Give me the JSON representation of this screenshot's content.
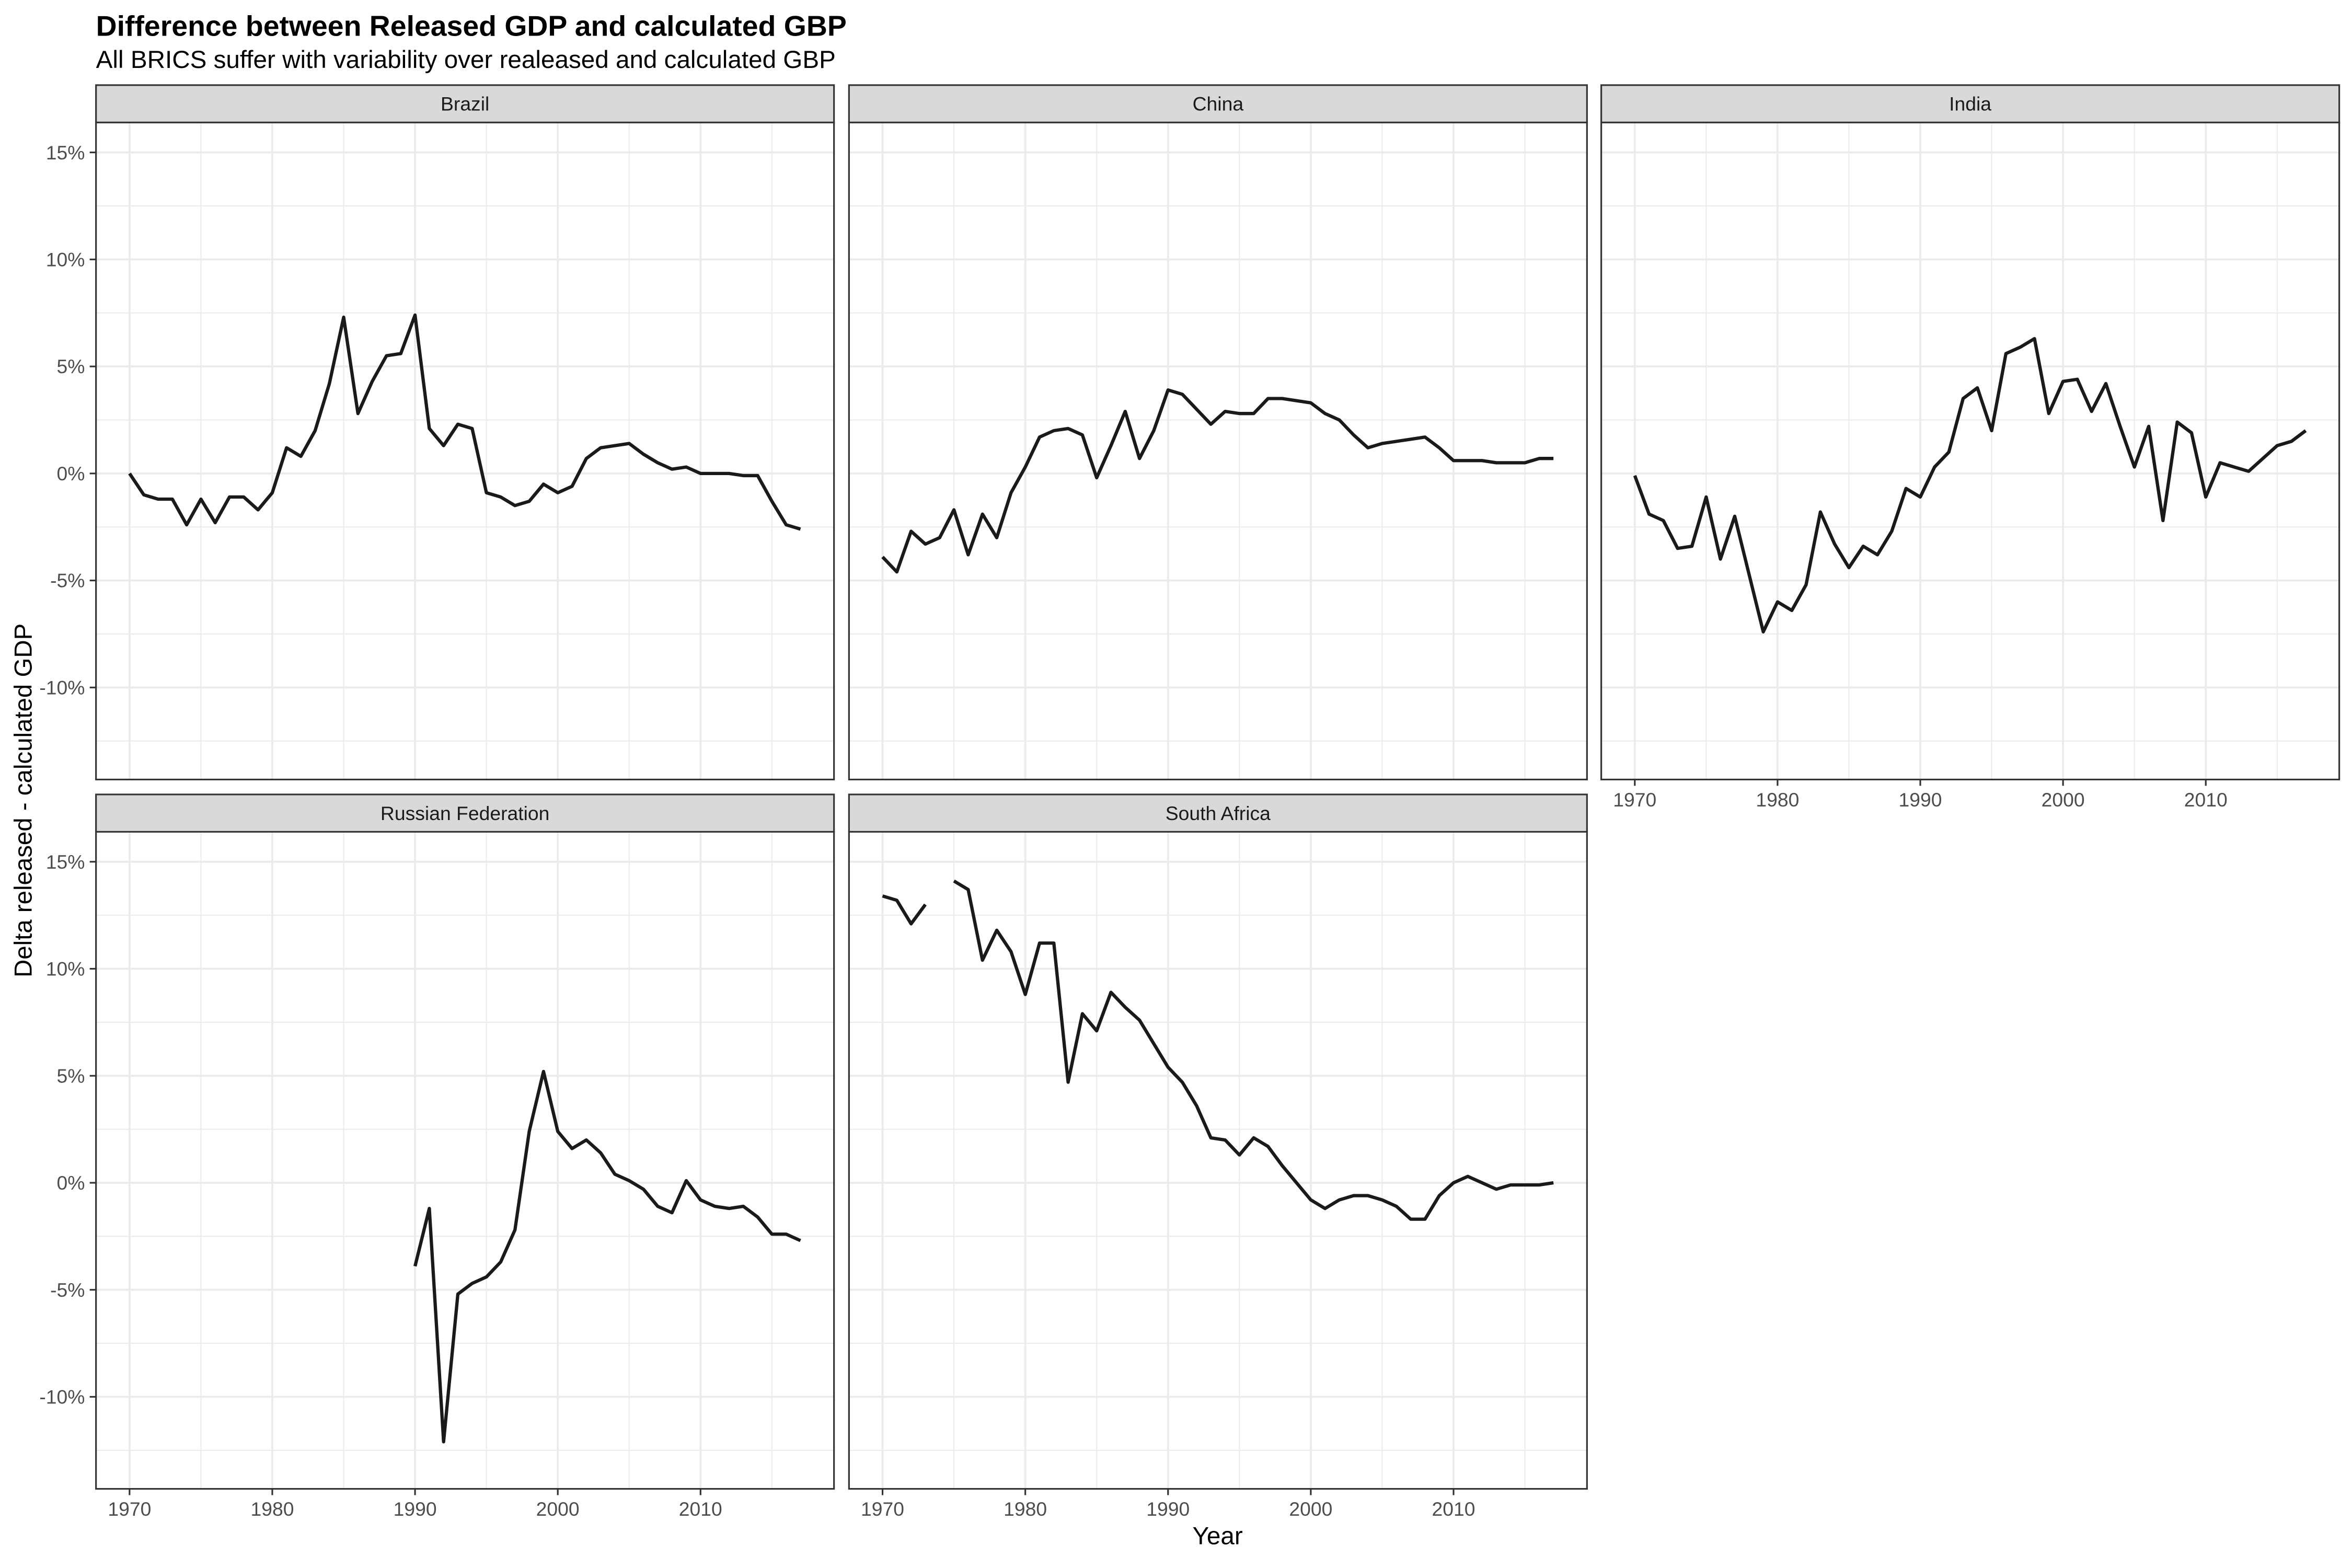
{
  "chart_data": {
    "type": "line",
    "title": "Difference between Released GDP and calculated GBP",
    "subtitle": "All BRICS suffer with variability over realeased and calculated GBP",
    "xlabel": "Year",
    "ylabel": "Delta released - calculated GDP",
    "xlim": [
      1967.65,
      2019.35
    ],
    "ylim": [
      -14.3,
      16.4
    ],
    "xticks": [
      1970,
      1980,
      1990,
      2000,
      2010
    ],
    "xtick_labels": [
      "1970",
      "1980",
      "1990",
      "2000",
      "2010"
    ],
    "yticks": [
      -10,
      -5,
      0,
      5,
      10,
      15
    ],
    "ytick_labels": [
      "-10%",
      "-5%",
      "0%",
      "5%",
      "10%",
      "15%"
    ],
    "grid": true,
    "legend": "none",
    "colors": {
      "line": "#1A1A1A",
      "strip": "#D9D9D9",
      "border": "#333333",
      "grid": "#EBEBEB",
      "axis_text": "#4D4D4D"
    },
    "x": [
      1970,
      1971,
      1972,
      1973,
      1974,
      1975,
      1976,
      1977,
      1978,
      1979,
      1980,
      1981,
      1982,
      1983,
      1984,
      1985,
      1986,
      1987,
      1988,
      1989,
      1990,
      1991,
      1992,
      1993,
      1994,
      1995,
      1996,
      1997,
      1998,
      1999,
      2000,
      2001,
      2002,
      2003,
      2004,
      2005,
      2006,
      2007,
      2008,
      2009,
      2010,
      2011,
      2012,
      2013,
      2014,
      2015,
      2016,
      2017
    ],
    "series": [
      {
        "name": "Brazil",
        "values": [
          0.0,
          -1.0,
          -1.2,
          -1.2,
          -2.4,
          -1.2,
          -2.3,
          -1.1,
          -1.1,
          -1.7,
          -0.9,
          1.2,
          0.8,
          2.0,
          4.2,
          7.3,
          2.8,
          4.3,
          5.5,
          5.6,
          7.4,
          2.1,
          1.3,
          2.3,
          2.1,
          -0.9,
          -1.1,
          -1.5,
          -1.3,
          -0.5,
          -0.9,
          -0.6,
          0.7,
          1.2,
          1.3,
          1.4,
          0.9,
          0.5,
          0.2,
          0.3,
          0.0,
          0.0,
          0.0,
          -0.1,
          -0.1,
          -1.3,
          -2.4,
          -2.6
        ]
      },
      {
        "name": "China",
        "values": [
          -3.9,
          -4.6,
          -2.7,
          -3.3,
          -3.0,
          -1.7,
          -3.8,
          -1.9,
          -3.0,
          -0.9,
          0.3,
          1.7,
          2.0,
          2.1,
          1.8,
          -0.2,
          1.3,
          2.9,
          0.7,
          2.0,
          3.9,
          3.7,
          3.0,
          2.3,
          2.9,
          2.8,
          2.8,
          3.5,
          3.5,
          3.4,
          3.3,
          2.8,
          2.5,
          1.8,
          1.2,
          1.4,
          1.5,
          1.6,
          1.7,
          1.2,
          0.6,
          0.6,
          0.6,
          0.5,
          0.5,
          0.5,
          0.7,
          0.7
        ]
      },
      {
        "name": "India",
        "values": [
          -0.1,
          -1.9,
          -2.2,
          -3.5,
          -3.4,
          -1.1,
          -4.0,
          -2.0,
          -4.7,
          -7.4,
          -6.0,
          -6.4,
          -5.2,
          -1.8,
          -3.3,
          -4.4,
          -3.4,
          -3.8,
          -2.7,
          -0.7,
          -1.1,
          0.3,
          1.0,
          3.5,
          4.0,
          2.0,
          5.6,
          5.9,
          6.3,
          2.8,
          4.3,
          4.4,
          2.9,
          4.2,
          2.2,
          0.3,
          2.2,
          -2.2,
          2.4,
          1.9,
          -1.1,
          0.5,
          0.3,
          0.1,
          0.7,
          1.3,
          1.5,
          2.0
        ]
      },
      {
        "name": "Russian Federation",
        "values": [
          null,
          null,
          null,
          null,
          null,
          null,
          null,
          null,
          null,
          null,
          null,
          null,
          null,
          null,
          null,
          null,
          null,
          null,
          null,
          null,
          -3.9,
          -1.2,
          -12.1,
          -5.2,
          -4.7,
          -4.4,
          -3.7,
          -2.2,
          2.4,
          5.2,
          2.4,
          1.6,
          2.0,
          1.4,
          0.4,
          0.1,
          -0.3,
          -1.1,
          -1.4,
          0.1,
          -0.8,
          -1.1,
          -1.2,
          -1.1,
          -1.6,
          -2.4,
          -2.4,
          -2.7
        ]
      },
      {
        "name": "South Africa",
        "values": [
          13.4,
          13.2,
          12.1,
          13.0,
          null,
          14.1,
          13.7,
          10.4,
          11.8,
          10.8,
          8.8,
          11.2,
          11.2,
          4.7,
          7.9,
          7.1,
          8.9,
          8.2,
          7.6,
          6.5,
          5.4,
          4.7,
          3.6,
          2.1,
          2.0,
          1.3,
          2.1,
          1.7,
          0.8,
          0.0,
          -0.8,
          -1.2,
          -0.8,
          -0.6,
          -0.6,
          -0.8,
          -1.1,
          -1.7,
          -1.7,
          -0.6,
          0.0,
          0.3,
          0.0,
          -0.3,
          -0.1,
          -0.1,
          -0.1,
          0.0
        ]
      }
    ]
  }
}
